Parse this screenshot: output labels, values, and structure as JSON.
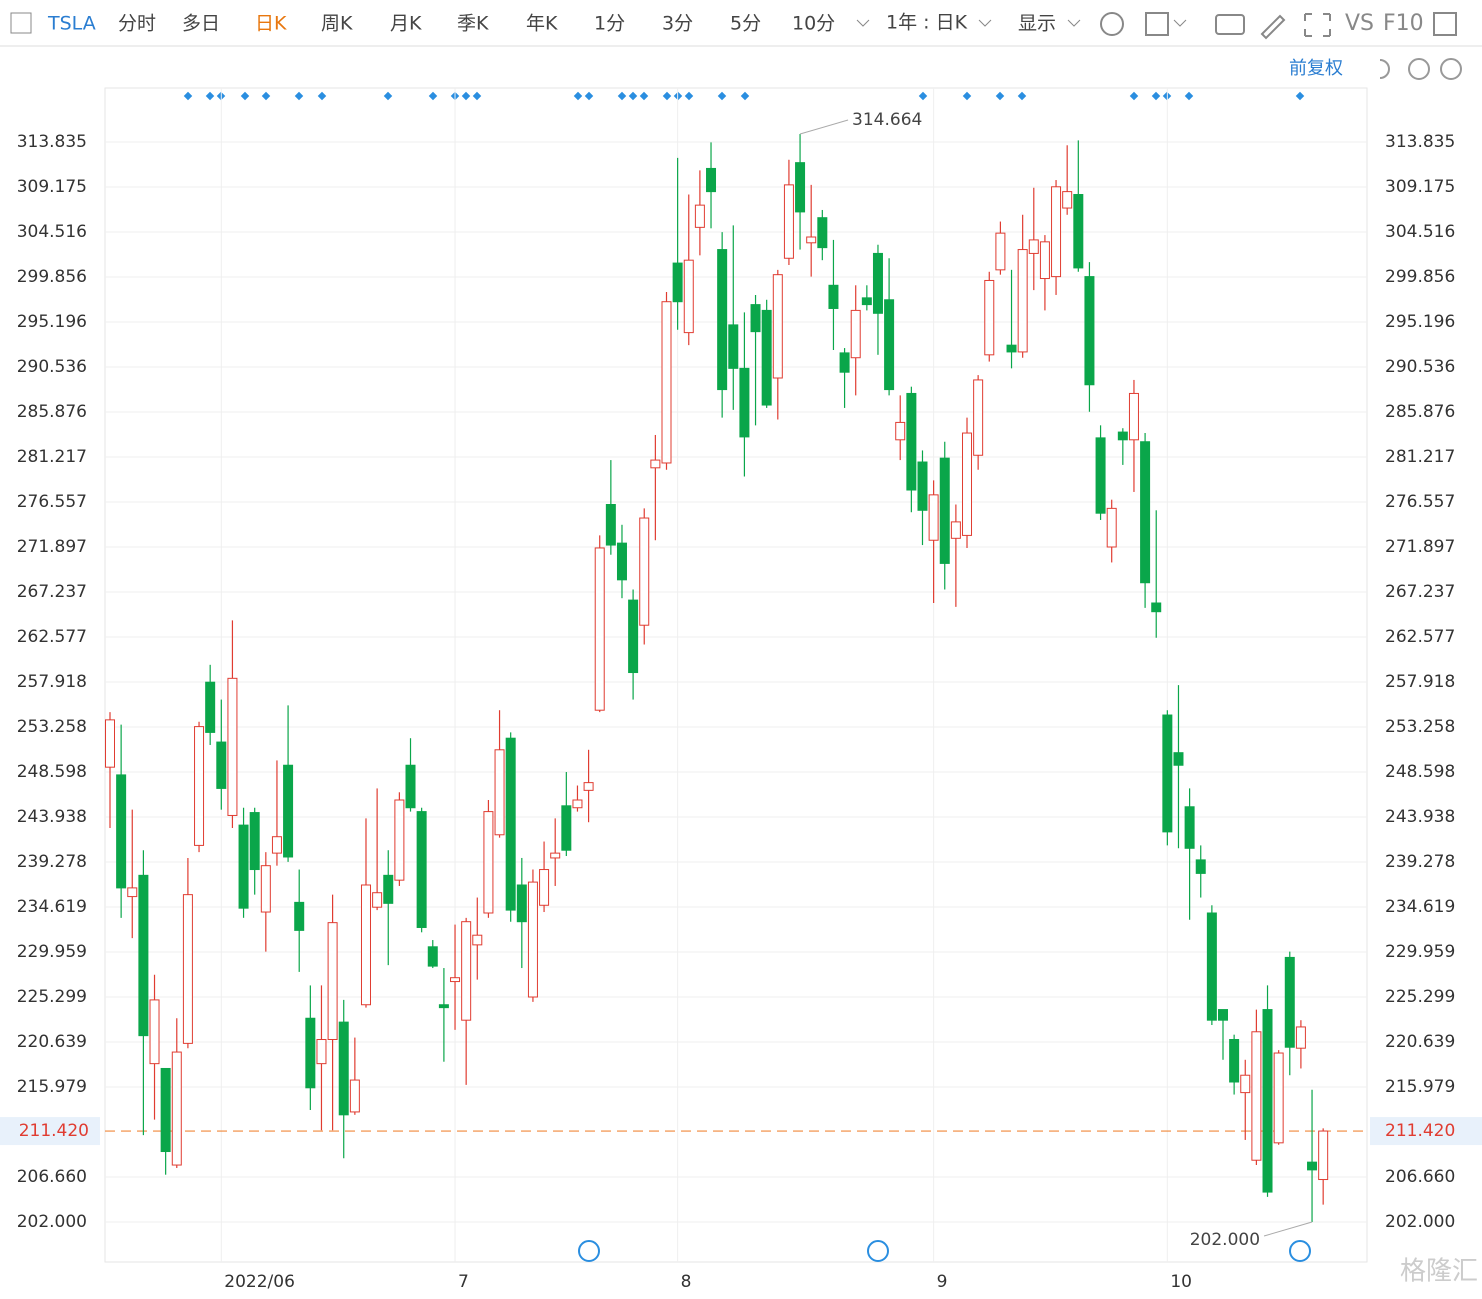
{
  "toolbar": {
    "symbol": "TSLA",
    "periods": [
      "分时",
      "多日",
      "日K",
      "周K",
      "月K",
      "季K",
      "年K",
      "1分",
      "3分",
      "5分",
      "10分"
    ],
    "active_period": "日K",
    "range": "1年 : 日K",
    "display": "显示",
    "vs": "VS",
    "f10": "F10",
    "adjust": "前复权"
  },
  "watermark": "格隆汇",
  "chart_data": {
    "type": "candlestick",
    "categories": [
      null,
      null,
      null,
      null,
      null,
      null,
      null,
      null,
      null,
      null,
      "2022/06",
      null,
      null,
      null,
      null,
      null,
      null,
      null,
      null,
      null,
      null,
      null,
      null,
      null,
      null,
      null,
      null,
      null,
      null,
      null,
      null,
      "7",
      null,
      null,
      null,
      null,
      null,
      null,
      null,
      null,
      null,
      null,
      null,
      null,
      null,
      null,
      null,
      null,
      null,
      null,
      null,
      "8",
      null,
      null,
      null,
      null,
      null,
      null,
      null,
      null,
      null,
      null,
      null,
      null,
      null,
      null,
      null,
      null,
      null,
      null,
      null,
      null,
      null,
      null,
      "9",
      null,
      null,
      null,
      null,
      null,
      null,
      null,
      null,
      null,
      null,
      null,
      null,
      null,
      null,
      null,
      null,
      null,
      null,
      null,
      null,
      "10",
      null,
      null,
      null,
      null,
      null,
      null,
      null,
      null,
      null,
      null,
      null,
      null,
      null,
      null
    ],
    "open": [
      249.1,
      248.3,
      235.7,
      237.9,
      218.4,
      217.9,
      207.9,
      220.5,
      241.0,
      257.9,
      251.7,
      244.1,
      243.1,
      244.4,
      234.1,
      240.2,
      249.3,
      235.1,
      223.1,
      218.4,
      220.9,
      222.7,
      213.4,
      224.5,
      234.6,
      237.9,
      237.4,
      249.3,
      244.5,
      230.5,
      224.5,
      226.9,
      222.9,
      230.7,
      234.0,
      242.1,
      252.1,
      236.9,
      225.3,
      234.8,
      239.7,
      245.1,
      244.9,
      246.7,
      255.0,
      276.3,
      272.3,
      266.4,
      263.8,
      280.1,
      280.6,
      301.3,
      294.1,
      305.0,
      311.1,
      302.7,
      294.9,
      290.4,
      297.0,
      296.4,
      289.4,
      301.8,
      311.7,
      303.4,
      306.0,
      299.0,
      292.0,
      291.5,
      297.7,
      302.3,
      297.5,
      283.0,
      287.8,
      280.7,
      272.6,
      281.1,
      272.8,
      273.1,
      281.4,
      291.8,
      300.6,
      292.8,
      292.1,
      302.3,
      299.7,
      299.9,
      307.0,
      308.4,
      299.9,
      283.2,
      271.9,
      283.8,
      283.0,
      282.8,
      266.1,
      254.5,
      250.6,
      245.0,
      239.5,
      234.0,
      224.0,
      220.9,
      215.4,
      208.4,
      224.0,
      210.2,
      229.4,
      220.0,
      208.2,
      206.4
    ],
    "high": [
      254.8,
      253.5,
      244.7,
      240.5,
      227.6,
      217.9,
      223.1,
      239.7,
      253.8,
      259.7,
      256.1,
      264.3,
      244.9,
      244.9,
      240.3,
      249.8,
      255.5,
      238.5,
      226.5,
      226.5,
      235.9,
      225.0,
      221.1,
      243.8,
      246.9,
      240.5,
      246.5,
      252.1,
      244.9,
      231.2,
      228.3,
      232.8,
      233.5,
      235.6,
      245.7,
      255.0,
      252.7,
      239.7,
      238.5,
      241.4,
      243.8,
      248.6,
      247.2,
      250.9,
      273.1,
      280.9,
      274.2,
      267.5,
      275.9,
      283.5,
      298.3,
      312.2,
      308.4,
      310.9,
      313.8,
      304.5,
      305.2,
      296.2,
      298.0,
      297.5,
      300.6,
      312.0,
      314.664,
      309.4,
      306.8,
      303.7,
      292.5,
      299.0,
      299.0,
      303.2,
      301.8,
      287.6,
      288.5,
      281.9,
      278.8,
      282.8,
      276.3,
      285.3,
      289.7,
      300.4,
      305.6,
      300.6,
      306.3,
      309.1,
      304.2,
      309.9,
      313.5,
      314.0,
      301.4,
      284.5,
      276.8,
      284.2,
      289.2,
      283.7,
      275.7,
      255.0,
      257.6,
      246.9,
      241.0,
      234.8,
      224.0,
      221.4,
      218.8,
      224.0,
      226.5,
      219.8,
      230.0,
      222.9,
      215.7,
      211.7
    ],
    "low": [
      242.8,
      233.5,
      231.4,
      211.0,
      212.6,
      206.9,
      207.6,
      220.0,
      240.3,
      251.4,
      244.7,
      242.8,
      233.5,
      235.9,
      230.0,
      238.9,
      239.3,
      227.9,
      213.6,
      211.5,
      211.5,
      208.6,
      213.1,
      224.2,
      234.3,
      228.6,
      236.8,
      244.5,
      232.0,
      228.3,
      218.6,
      221.9,
      216.2,
      227.1,
      233.5,
      241.8,
      233.1,
      228.3,
      224.8,
      234.1,
      236.8,
      239.9,
      244.5,
      243.4,
      254.8,
      271.1,
      266.6,
      256.1,
      261.8,
      272.6,
      279.9,
      294.4,
      292.8,
      302.1,
      304.9,
      285.3,
      286.1,
      279.2,
      284.5,
      286.3,
      285.1,
      301.1,
      302.7,
      299.9,
      301.6,
      292.3,
      286.3,
      287.6,
      296.4,
      291.8,
      287.6,
      280.9,
      275.5,
      272.1,
      266.1,
      267.5,
      265.7,
      271.8,
      279.9,
      291.1,
      300.1,
      290.4,
      291.5,
      298.5,
      296.4,
      298.0,
      306.3,
      300.4,
      285.9,
      274.7,
      270.3,
      280.4,
      277.6,
      265.6,
      262.5,
      241.0,
      240.7,
      233.3,
      235.6,
      222.4,
      218.8,
      215.2,
      210.5,
      207.9,
      204.6,
      210.0,
      217.2,
      217.9,
      202.0,
      203.8
    ],
    "close": [
      254.0,
      236.6,
      236.6,
      221.3,
      225.0,
      209.3,
      219.6,
      235.9,
      253.3,
      252.7,
      246.9,
      258.3,
      234.5,
      238.5,
      238.9,
      241.9,
      239.8,
      232.2,
      215.9,
      220.9,
      233.0,
      213.1,
      216.7,
      236.9,
      236.1,
      235.0,
      245.7,
      244.9,
      232.5,
      228.5,
      224.2,
      227.3,
      233.1,
      231.7,
      244.5,
      250.9,
      234.3,
      233.1,
      237.2,
      238.5,
      240.2,
      240.5,
      245.7,
      247.5,
      271.8,
      272.1,
      268.5,
      258.9,
      274.9,
      280.9,
      297.3,
      297.3,
      301.6,
      307.3,
      308.7,
      288.2,
      290.4,
      283.3,
      294.2,
      286.6,
      300.1,
      309.4,
      306.6,
      304.0,
      302.9,
      296.6,
      290.0,
      296.4,
      297.0,
      296.1,
      288.2,
      284.8,
      277.8,
      275.7,
      277.3,
      270.2,
      274.5,
      283.7,
      289.2,
      299.5,
      304.4,
      292.1,
      302.7,
      303.7,
      303.5,
      309.2,
      308.7,
      300.8,
      288.7,
      275.4,
      275.9,
      283.0,
      287.8,
      268.2,
      265.2,
      242.4,
      249.3,
      240.7,
      238.1,
      222.9,
      222.9,
      216.5,
      217.2,
      221.7,
      205.1,
      219.5,
      220.1,
      222.2,
      207.4,
      211.42
    ],
    "up_color": "#e03c31",
    "down_color": "#0aa64a",
    "ylim": [
      197.86,
      319.43
    ],
    "yticks": [
      {
        "value": 202,
        "label": "202.000"
      },
      {
        "value": 206.66,
        "label": "206.660"
      },
      215.979,
      220.639,
      225.299,
      229.959,
      234.619,
      239.278,
      243.938,
      248.598,
      253.258,
      257.918,
      262.577,
      267.237,
      271.897,
      276.557,
      281.217,
      285.876,
      290.536,
      295.196,
      299.856,
      304.516,
      309.175,
      313.835
    ],
    "grid": true,
    "current_price": {
      "value": 211.42,
      "label": "211.420"
    },
    "max_label": 314.664,
    "min_label": {
      "value": 202,
      "label": "202.000"
    }
  }
}
